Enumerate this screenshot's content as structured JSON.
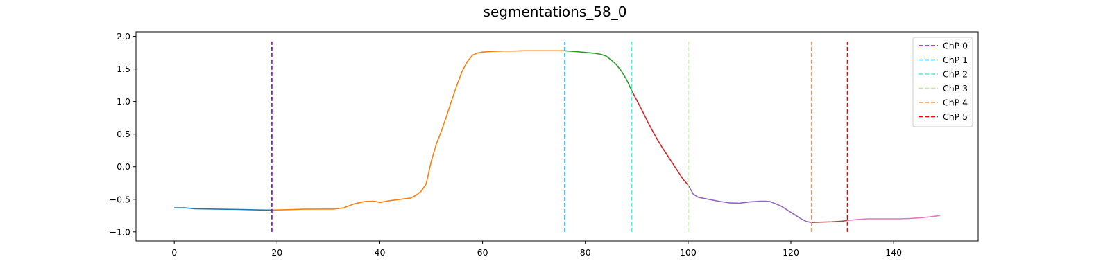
{
  "chart_data": {
    "type": "line",
    "title": "segmentations_58_0",
    "xlabel": "",
    "ylabel": "",
    "xlim": [
      -7.45,
      156.45
    ],
    "ylim": [
      -1.14,
      2.07
    ],
    "xticks": [
      0,
      20,
      40,
      60,
      80,
      100,
      120,
      140
    ],
    "yticks": [
      -1.0,
      -0.5,
      0.0,
      0.5,
      1.0,
      1.5,
      2.0
    ],
    "xtick_labels": [
      "0",
      "20",
      "40",
      "60",
      "80",
      "100",
      "120",
      "140"
    ],
    "ytick_labels": [
      "−1.0",
      "−0.5",
      "0.0",
      "0.5",
      "1.0",
      "1.5",
      "2.0"
    ],
    "grid": false,
    "legend_position": "top-right",
    "series": [
      {
        "color": "#1f77b4",
        "points": [
          [
            0,
            -0.63
          ],
          [
            2,
            -0.63
          ],
          [
            4,
            -0.645
          ],
          [
            6,
            -0.648
          ],
          [
            8,
            -0.65
          ],
          [
            10,
            -0.653
          ],
          [
            12,
            -0.655
          ],
          [
            14,
            -0.658
          ],
          [
            16,
            -0.662
          ],
          [
            18,
            -0.665
          ],
          [
            19,
            -0.665
          ]
        ]
      },
      {
        "color": "#ff7f0e",
        "points": [
          [
            19,
            -0.665
          ],
          [
            22,
            -0.66
          ],
          [
            25,
            -0.652
          ],
          [
            28,
            -0.65
          ],
          [
            31,
            -0.65
          ],
          [
            33,
            -0.63
          ],
          [
            35,
            -0.57
          ],
          [
            37,
            -0.535
          ],
          [
            39,
            -0.53
          ],
          [
            40,
            -0.548
          ],
          [
            42,
            -0.52
          ],
          [
            44,
            -0.5
          ],
          [
            46,
            -0.48
          ],
          [
            47,
            -0.44
          ],
          [
            48,
            -0.38
          ],
          [
            49,
            -0.27
          ],
          [
            50,
            0.08
          ],
          [
            51,
            0.35
          ],
          [
            52,
            0.55
          ],
          [
            53,
            0.78
          ],
          [
            54,
            1.02
          ],
          [
            55,
            1.25
          ],
          [
            56,
            1.46
          ],
          [
            57,
            1.61
          ],
          [
            58,
            1.71
          ],
          [
            59,
            1.745
          ],
          [
            60,
            1.76
          ],
          [
            62,
            1.77
          ],
          [
            64,
            1.775
          ],
          [
            66,
            1.775
          ],
          [
            68,
            1.78
          ],
          [
            70,
            1.78
          ],
          [
            72,
            1.78
          ],
          [
            74,
            1.78
          ],
          [
            76,
            1.78
          ]
        ]
      },
      {
        "color": "#2ca02c",
        "points": [
          [
            76,
            1.78
          ],
          [
            78,
            1.768
          ],
          [
            80,
            1.755
          ],
          [
            82,
            1.738
          ],
          [
            83,
            1.725
          ],
          [
            84,
            1.7
          ],
          [
            85,
            1.64
          ],
          [
            86,
            1.57
          ],
          [
            87,
            1.47
          ],
          [
            88,
            1.34
          ],
          [
            89,
            1.17
          ]
        ]
      },
      {
        "color": "#d62728",
        "points": [
          [
            89,
            1.17
          ],
          [
            90,
            1.02
          ],
          [
            91,
            0.87
          ],
          [
            92,
            0.71
          ],
          [
            93,
            0.56
          ],
          [
            94,
            0.42
          ],
          [
            95,
            0.29
          ],
          [
            96,
            0.17
          ],
          [
            97,
            0.05
          ],
          [
            98,
            -0.07
          ],
          [
            99,
            -0.19
          ],
          [
            100,
            -0.28
          ]
        ]
      },
      {
        "color": "#9467bd",
        "points": [
          [
            100,
            -0.28
          ],
          [
            101,
            -0.42
          ],
          [
            102,
            -0.47
          ],
          [
            104,
            -0.5
          ],
          [
            106,
            -0.53
          ],
          [
            108,
            -0.555
          ],
          [
            110,
            -0.56
          ],
          [
            112,
            -0.54
          ],
          [
            114,
            -0.53
          ],
          [
            115,
            -0.53
          ],
          [
            116,
            -0.535
          ],
          [
            118,
            -0.6
          ],
          [
            120,
            -0.7
          ],
          [
            122,
            -0.8
          ],
          [
            123,
            -0.84
          ],
          [
            124,
            -0.855
          ]
        ]
      },
      {
        "color": "#8c564b",
        "points": [
          [
            124,
            -0.855
          ],
          [
            126,
            -0.85
          ],
          [
            128,
            -0.845
          ],
          [
            130,
            -0.835
          ],
          [
            131,
            -0.825
          ]
        ]
      },
      {
        "color": "#e377c2",
        "points": [
          [
            131,
            -0.825
          ],
          [
            133,
            -0.81
          ],
          [
            135,
            -0.8
          ],
          [
            138,
            -0.8
          ],
          [
            141,
            -0.8
          ],
          [
            143,
            -0.795
          ],
          [
            145,
            -0.785
          ],
          [
            147,
            -0.77
          ],
          [
            149,
            -0.75
          ]
        ]
      }
    ],
    "changepoints": [
      {
        "name": "ChP 0",
        "x": 19,
        "color": "#8000ff"
      },
      {
        "name": "ChP 1",
        "x": 76,
        "color": "#1995f2"
      },
      {
        "name": "ChP 2",
        "x": 89,
        "color": "#4cf2ce"
      },
      {
        "name": "ChP 3",
        "x": 100,
        "color": "#b2f396"
      },
      {
        "name": "ChP 4",
        "x": 124,
        "color": "#ff954e"
      },
      {
        "name": "ChP 5",
        "x": 131,
        "color": "#ff0000"
      }
    ],
    "changepoint_range": [
      -1.0,
      1.92
    ]
  }
}
